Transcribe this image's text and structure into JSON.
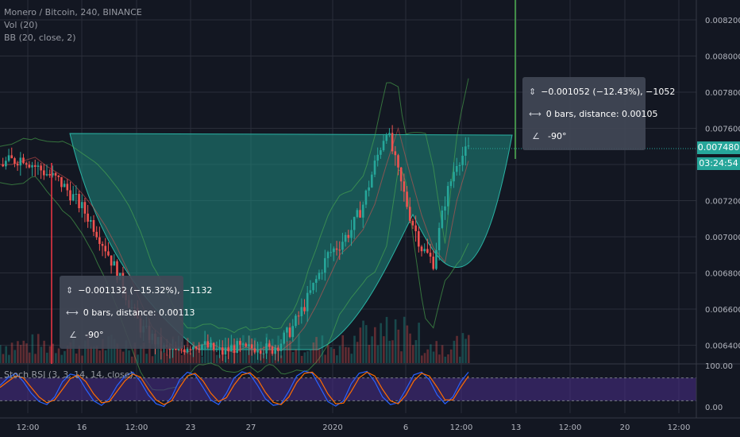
{
  "legend": {
    "title": "Monero / Bitcoin, 240, BINANCE",
    "vol": "Vol (20)",
    "bb": "BB (20, close, 2)",
    "stoch": "Stoch RSI (3, 3, 14, 14, close)"
  },
  "price_tag": "0.007480",
  "timer_tag": "03:24:54",
  "measure_left": {
    "range": "−0.001132 (−15.32%), −1132",
    "bars": "0 bars, distance: 0.00113",
    "angle": "-90°"
  },
  "measure_right": {
    "range": "−0.001052 (−12.43%), −1052",
    "bars": "0 bars, distance: 0.00105",
    "angle": "-90°"
  },
  "icons": {
    "range": "range-arrows-icon",
    "bars": "bars-distance-icon",
    "angle": "angle-icon"
  },
  "colors": {
    "background": "#131722",
    "grid": "#2a2e39",
    "up": "#26a69a",
    "down": "#ef5350",
    "cup_fill": "#1f8a80",
    "stoch_band": "#4a2d8a",
    "stoch_k": "#2962ff",
    "stoch_d": "#ff6d00"
  },
  "chart_data": [
    {
      "type": "candlestick",
      "title": "Monero / Bitcoin, 240, BINANCE",
      "y_axis_ticks": [
        "0.008200",
        "0.008000",
        "0.007800",
        "0.007600",
        "0.007400",
        "0.007200",
        "0.007000",
        "0.006800",
        "0.006600",
        "0.006400"
      ],
      "x_axis_ticks": [
        "12:00",
        "16",
        "12:00",
        "23",
        "27",
        "2020",
        "6",
        "12:00",
        "13",
        "12:00",
        "20",
        "12:00"
      ],
      "ylim": [
        0.00632,
        0.00826
      ],
      "last_price": 0.00748,
      "countdown": "03:24:54",
      "overlays": [
        "Vol (20)",
        "BB (20, close, 2)"
      ],
      "close_path": [
        [
          0,
          0.0074
        ],
        [
          6,
          0.00742
        ],
        [
          12,
          0.00744
        ],
        [
          18,
          0.00739
        ],
        [
          24,
          0.00735
        ],
        [
          30,
          0.00731
        ],
        [
          36,
          0.00724
        ],
        [
          42,
          0.00716
        ],
        [
          48,
          0.00706
        ],
        [
          54,
          0.00694
        ],
        [
          60,
          0.0068
        ],
        [
          66,
          0.00664
        ],
        [
          72,
          0.0065
        ],
        [
          78,
          0.00644
        ],
        [
          84,
          0.00638
        ],
        [
          90,
          0.00636
        ],
        [
          96,
          0.0064
        ],
        [
          102,
          0.00641
        ],
        [
          108,
          0.00638
        ],
        [
          114,
          0.00636
        ],
        [
          120,
          0.00639
        ],
        [
          126,
          0.00637
        ],
        [
          132,
          0.0064
        ],
        [
          138,
          0.00637
        ],
        [
          144,
          0.00642
        ],
        [
          150,
          0.0065
        ],
        [
          156,
          0.00662
        ],
        [
          162,
          0.00676
        ],
        [
          168,
          0.0069
        ],
        [
          174,
          0.00696
        ],
        [
          180,
          0.00704
        ],
        [
          186,
          0.00718
        ],
        [
          192,
          0.0074
        ],
        [
          198,
          0.0076
        ],
        [
          204,
          0.00735
        ],
        [
          210,
          0.00712
        ],
        [
          216,
          0.00694
        ],
        [
          222,
          0.00686
        ],
        [
          228,
          0.0072
        ],
        [
          234,
          0.00742
        ],
        [
          240,
          0.00748
        ]
      ],
      "measurements": [
        {
          "range": "−0.001132 (−15.32%), −1132",
          "distance": "0 bars, distance: 0.00113",
          "angle": "-90°"
        },
        {
          "range": "−0.001052 (−12.43%), −1052",
          "distance": "0 bars, distance: 0.00105",
          "angle": "-90°"
        }
      ]
    },
    {
      "type": "line",
      "title": "Stoch RSI (3, 3, 14, 14, close)",
      "y_axis_ticks": [
        "100.00",
        "0.00"
      ],
      "ylim": [
        0,
        100
      ],
      "band": [
        20,
        80
      ],
      "series": [
        {
          "name": "K",
          "values": [
            60,
            80,
            92,
            70,
            40,
            18,
            10,
            30,
            70,
            90,
            85,
            50,
            20,
            8,
            25,
            60,
            85,
            95,
            70,
            35,
            12,
            5,
            30,
            75,
            95,
            88,
            55,
            22,
            10,
            40,
            80,
            96,
            90,
            60,
            25,
            8,
            12,
            45,
            85,
            98,
            92,
            55,
            18,
            6,
            20,
            65,
            92,
            97,
            70,
            30,
            10,
            15,
            50,
            88,
            95,
            75,
            35,
            12,
            30,
            70,
            95
          ]
        },
        {
          "name": "D",
          "values": [
            55,
            70,
            85,
            80,
            55,
            30,
            15,
            22,
            50,
            78,
            88,
            70,
            38,
            15,
            18,
            45,
            72,
            90,
            82,
            50,
            22,
            10,
            20,
            55,
            85,
            92,
            72,
            40,
            18,
            28,
            62,
            88,
            94,
            76,
            42,
            16,
            10,
            30,
            68,
            92,
            95,
            75,
            38,
            12,
            14,
            45,
            80,
            95,
            85,
            50,
            20,
            12,
            35,
            72,
            92,
            85,
            55,
            22,
            22,
            55,
            85
          ]
        }
      ]
    }
  ]
}
